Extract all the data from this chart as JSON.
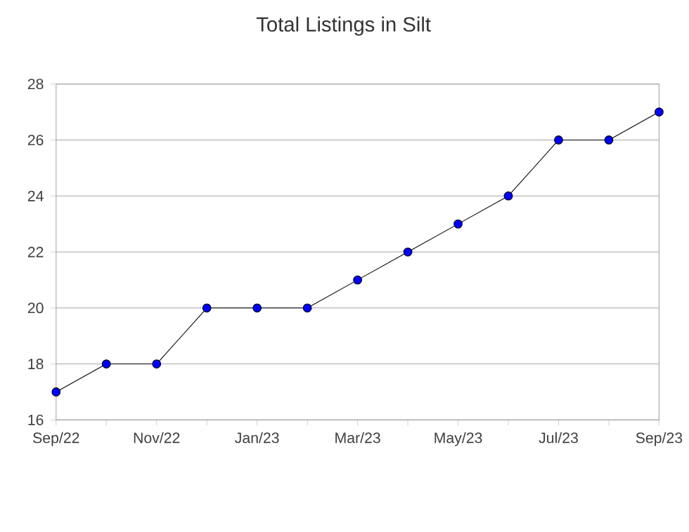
{
  "chart_data": {
    "type": "line",
    "title": "Total Listings in Silt",
    "x": [
      "2022-09",
      "2022-10",
      "2022-11",
      "2022-12",
      "2023-01",
      "2023-02",
      "2023-03",
      "2023-04",
      "2023-05",
      "2023-06",
      "2023-07",
      "2023-08",
      "2023-09"
    ],
    "series": [
      {
        "color": "#0000ff",
        "values": [
          17,
          18,
          18,
          20,
          20,
          20,
          21,
          22,
          23,
          24,
          26,
          26,
          27
        ]
      }
    ],
    "xlim": [
      "2022-09",
      "2023-09"
    ],
    "xticks": [
      {
        "value": "2022-09",
        "label": "Sep/22"
      },
      {
        "value": "2022-10",
        "label": null
      },
      {
        "value": "2022-11",
        "label": "Nov/22"
      },
      {
        "value": "2022-12",
        "label": null
      },
      {
        "value": "2023-01",
        "label": "Jan/23"
      },
      {
        "value": "2023-02",
        "label": null
      },
      {
        "value": "2023-03",
        "label": "Mar/23"
      },
      {
        "value": "2023-04",
        "label": null
      },
      {
        "value": "2023-05",
        "label": "May/23"
      },
      {
        "value": "2023-06",
        "label": null
      },
      {
        "value": "2023-07",
        "label": "Jul/23"
      },
      {
        "value": "2023-08",
        "label": null
      },
      {
        "value": "2023-09",
        "label": "Sep/23"
      }
    ],
    "ylim": [
      16,
      28
    ],
    "yticks": [
      16,
      18,
      20,
      22,
      24,
      26,
      28
    ],
    "grid": "y",
    "marker": "circle",
    "line_style": "solid"
  }
}
